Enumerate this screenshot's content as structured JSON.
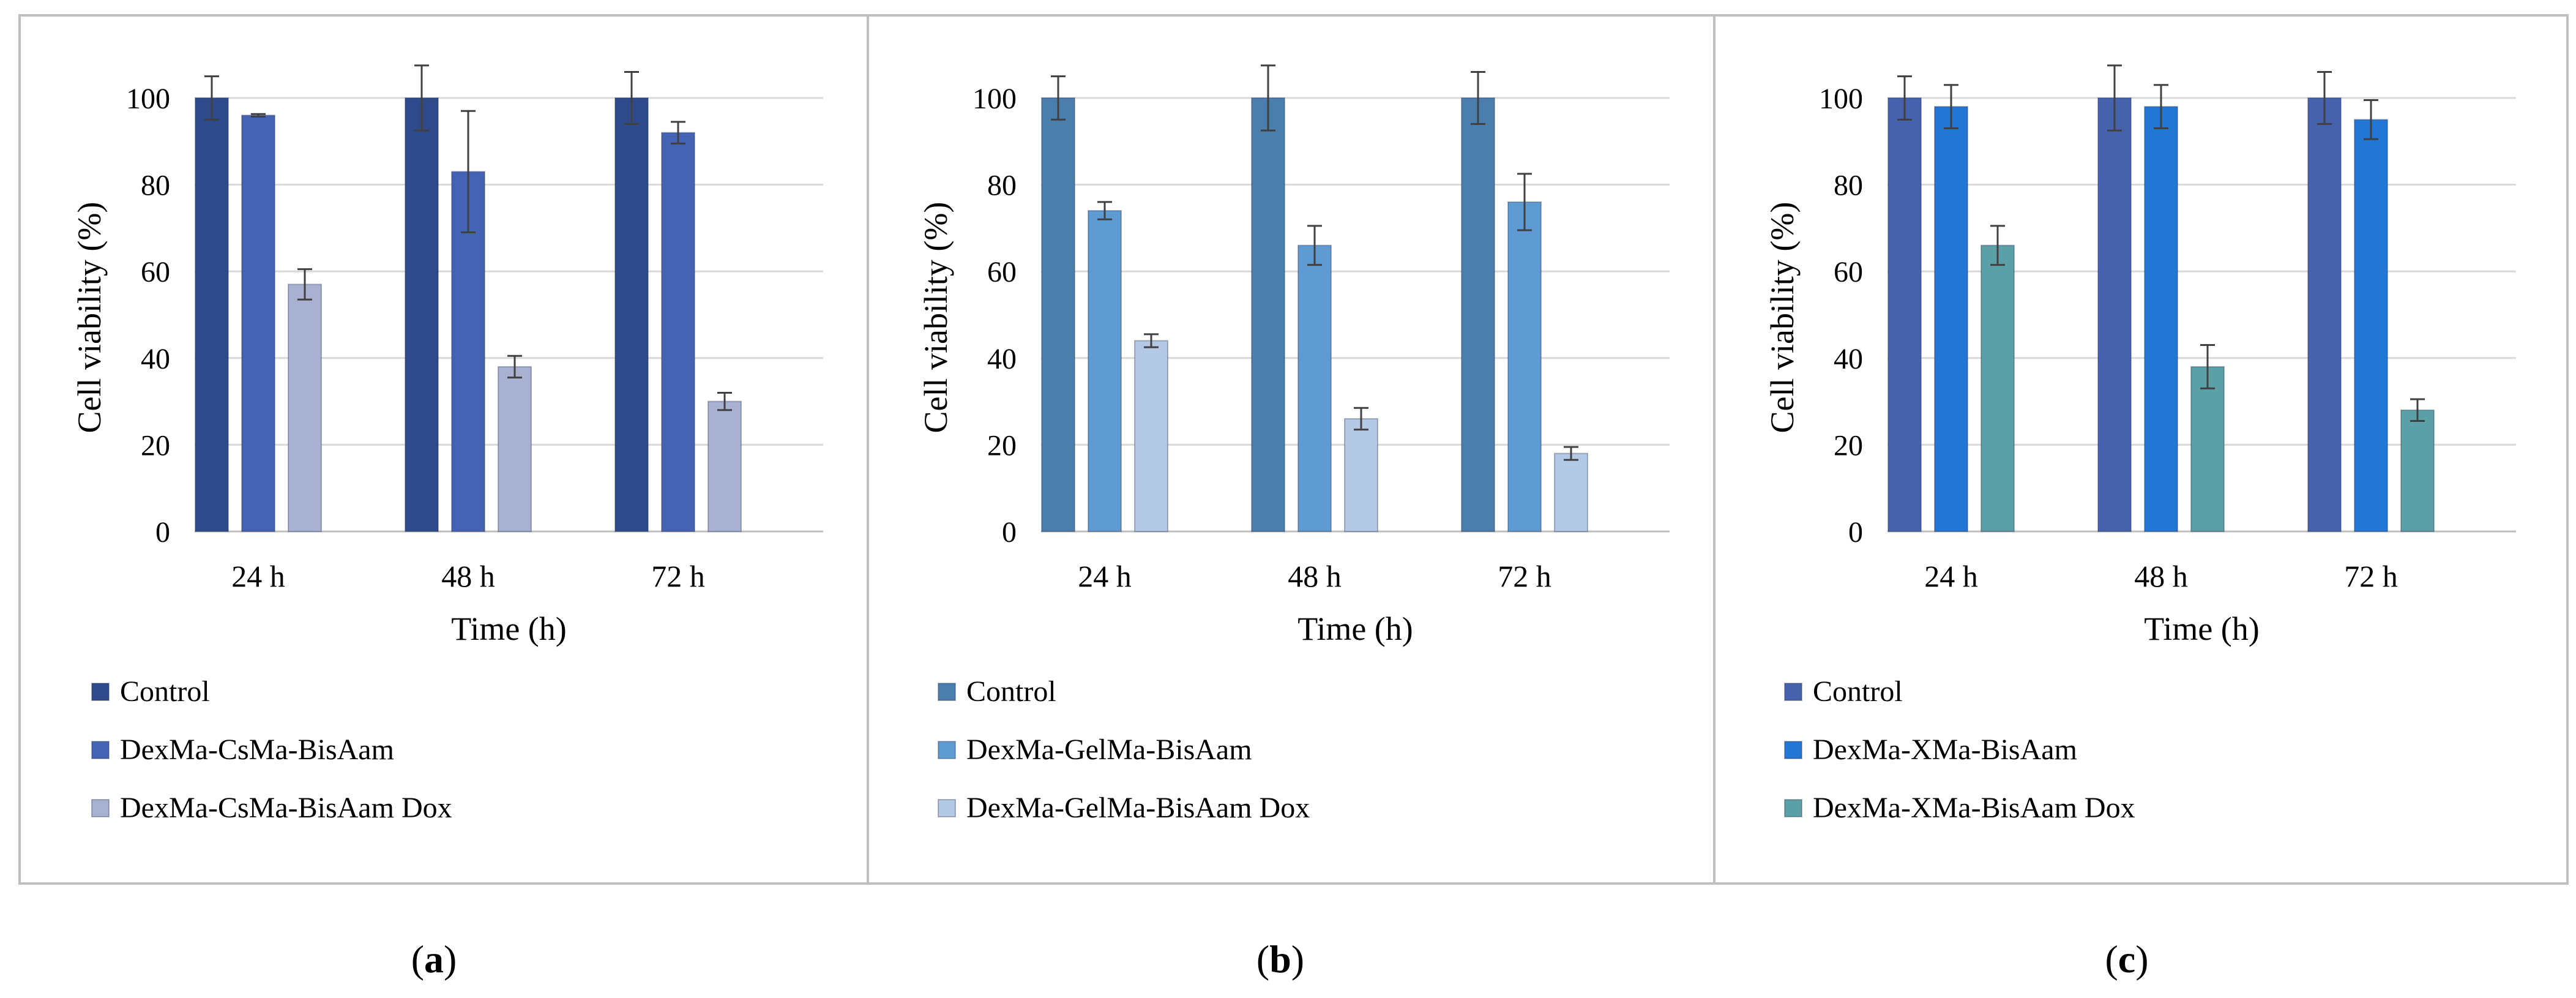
{
  "chart_data": [
    {
      "type": "bar",
      "panel_label": "a",
      "xlabel": "Time (h)",
      "ylabel": "Cell viability (%)",
      "categories": [
        "24 h",
        "48 h",
        "72 h"
      ],
      "ylim": [
        0,
        110
      ],
      "yticks": [
        0,
        20,
        40,
        60,
        80,
        100
      ],
      "grid": true,
      "series": [
        {
          "name": "Control",
          "color": "#2E4A8B",
          "values": [
            100,
            100,
            100
          ],
          "errors": [
            5,
            7.5,
            6
          ]
        },
        {
          "name": "DexMa-CsMa-BisAam",
          "color": "#4463B5",
          "values": [
            96,
            83,
            92
          ],
          "errors": [
            0.3,
            14,
            2.5
          ]
        },
        {
          "name": "DexMa-CsMa-BisAam Dox",
          "color": "#A9B1D2",
          "values": [
            57,
            38,
            30
          ],
          "errors": [
            3.5,
            2.5,
            2
          ]
        }
      ]
    },
    {
      "type": "bar",
      "panel_label": "b",
      "xlabel": "Time (h)",
      "ylabel": "Cell viability (%)",
      "categories": [
        "24 h",
        "48 h",
        "72 h"
      ],
      "ylim": [
        0,
        110
      ],
      "yticks": [
        0,
        20,
        40,
        60,
        80,
        100
      ],
      "grid": true,
      "series": [
        {
          "name": "Control",
          "color": "#4A7EAC",
          "values": [
            100,
            100,
            100
          ],
          "errors": [
            5,
            7.5,
            6
          ]
        },
        {
          "name": "DexMa-GelMa-BisAam",
          "color": "#5E9BD2",
          "values": [
            74,
            66,
            76
          ],
          "errors": [
            2,
            4.5,
            6.5
          ]
        },
        {
          "name": "DexMa-GelMa-BisAam Dox",
          "color": "#B4C9E6",
          "values": [
            44,
            26,
            18
          ],
          "errors": [
            1.5,
            2.5,
            1.5
          ]
        }
      ]
    },
    {
      "type": "bar",
      "panel_label": "c",
      "xlabel": "Time (h)",
      "ylabel": "Cell viability (%)",
      "categories": [
        "24 h",
        "48 h",
        "72 h"
      ],
      "ylim": [
        0,
        110
      ],
      "yticks": [
        0,
        20,
        40,
        60,
        80,
        100
      ],
      "grid": true,
      "series": [
        {
          "name": "Control",
          "color": "#4662AC",
          "values": [
            100,
            100,
            100
          ],
          "errors": [
            5,
            7.5,
            6
          ]
        },
        {
          "name": "DexMa-XMa-BisAam",
          "color": "#2277D4",
          "values": [
            98,
            98,
            95
          ],
          "errors": [
            5,
            5,
            4.5
          ]
        },
        {
          "name": "DexMa-XMa-BisAam Dox",
          "color": "#5AA0A6",
          "values": [
            66,
            38,
            28
          ],
          "errors": [
            4.5,
            5,
            2.5
          ]
        }
      ]
    }
  ]
}
